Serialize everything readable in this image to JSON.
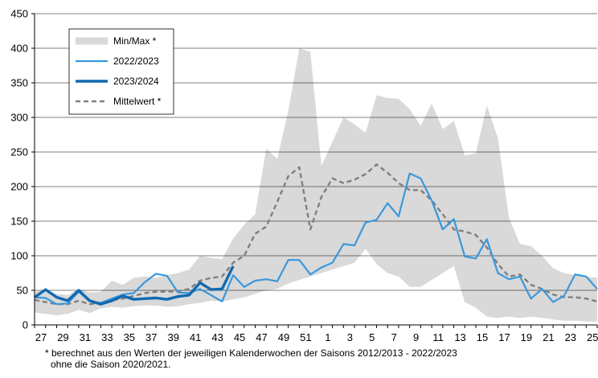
{
  "chart_data": {
    "type": "line",
    "ylim": [
      0,
      450
    ],
    "yticks": [
      0,
      50,
      100,
      150,
      200,
      250,
      300,
      350,
      400,
      450
    ],
    "xlabels": [
      "27",
      "29",
      "31",
      "33",
      "35",
      "37",
      "39",
      "41",
      "43",
      "45",
      "47",
      "49",
      "51",
      "1",
      "3",
      "5",
      "7",
      "9",
      "11",
      "13",
      "15",
      "17",
      "19",
      "21",
      "23",
      "25"
    ],
    "grid": "horizontal",
    "legend_position": "top-left",
    "x": [
      "27",
      "28",
      "29",
      "30",
      "31",
      "32",
      "33",
      "34",
      "35",
      "36",
      "37",
      "38",
      "39",
      "40",
      "41",
      "42",
      "43",
      "44",
      "45",
      "46",
      "47",
      "48",
      "49",
      "50",
      "51",
      "52",
      "1",
      "2",
      "3",
      "4",
      "5",
      "6",
      "7",
      "8",
      "9",
      "10",
      "11",
      "12",
      "13",
      "14",
      "15",
      "16",
      "17",
      "18",
      "19",
      "20",
      "21",
      "22",
      "23",
      "24",
      "25",
      "26"
    ],
    "band": {
      "name": "Min/Max *",
      "color": "#d9d9d9",
      "max": [
        48,
        50,
        45,
        43,
        52,
        47,
        48,
        64,
        58,
        68,
        70,
        68,
        72,
        75,
        80,
        100,
        97,
        95,
        125,
        145,
        160,
        255,
        240,
        310,
        400,
        395,
        230,
        265,
        300,
        290,
        278,
        332,
        328,
        327,
        312,
        288,
        320,
        283,
        295,
        245,
        248,
        317,
        270,
        155,
        117,
        114,
        100,
        82,
        75,
        72,
        70,
        68
      ],
      "min": [
        18,
        16,
        14,
        16,
        22,
        17,
        24,
        26,
        25,
        27,
        28,
        28,
        26,
        27,
        30,
        32,
        35,
        34,
        37,
        40,
        45,
        50,
        52,
        60,
        65,
        70,
        75,
        80,
        85,
        90,
        110,
        88,
        75,
        70,
        55,
        55,
        65,
        75,
        85,
        33,
        25,
        12,
        10,
        12,
        10,
        12,
        10,
        8,
        6,
        6,
        5,
        5
      ]
    },
    "series": [
      {
        "name": "2022/2023",
        "color": "#3a98dc",
        "values": [
          40,
          39,
          30,
          31,
          48,
          34,
          32,
          38,
          44,
          46,
          62,
          74,
          71,
          47,
          46,
          52,
          43,
          34,
          72,
          55,
          64,
          66,
          63,
          94,
          94,
          73,
          83,
          90,
          117,
          115,
          148,
          152,
          176,
          157,
          219,
          212,
          180,
          138,
          153,
          99,
          96,
          124,
          75,
          66,
          70,
          38,
          52,
          33,
          42,
          73,
          70,
          52
        ]
      },
      {
        "name": "2023/2024",
        "color": "#1069b0",
        "values": [
          40,
          51,
          40,
          35,
          50,
          35,
          30,
          35,
          42,
          37,
          38,
          39,
          37,
          41,
          43,
          61,
          51,
          52,
          85,
          null,
          null,
          null,
          null,
          null,
          null,
          null,
          null,
          null,
          null,
          null,
          null,
          null,
          null,
          null,
          null,
          null,
          null,
          null,
          null,
          null,
          null,
          null,
          null,
          null,
          null,
          null,
          null,
          null,
          null,
          null,
          null,
          null
        ]
      },
      {
        "name": "Mittelwert *",
        "color": "#7f7f7f",
        "values": [
          36,
          33,
          30,
          30,
          35,
          30,
          32,
          36,
          38,
          42,
          46,
          48,
          48,
          49,
          52,
          64,
          68,
          70,
          90,
          100,
          132,
          142,
          178,
          215,
          228,
          138,
          185,
          212,
          205,
          210,
          218,
          232,
          220,
          205,
          195,
          195,
          180,
          160,
          138,
          135,
          130,
          112,
          88,
          70,
          73,
          58,
          52,
          44,
          40,
          40,
          38,
          34
        ]
      }
    ]
  },
  "footnote": {
    "line1": "* berechnet aus den Werten der jeweiligen Kalenderwochen der Saisons 2012/2013 - 2022/2023",
    "line2": "ohne die Saison 2020/2021."
  }
}
